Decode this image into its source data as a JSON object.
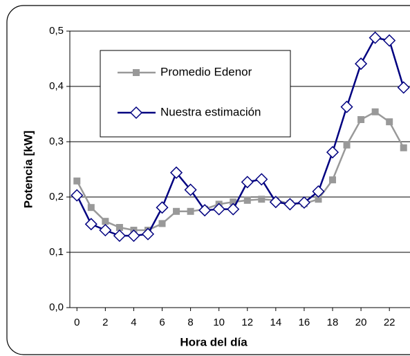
{
  "chart_data": {
    "type": "line",
    "x_label": "Hora del día",
    "y_label": "Potencia [kW]",
    "x": [
      0,
      1,
      2,
      3,
      4,
      5,
      6,
      7,
      8,
      9,
      10,
      11,
      12,
      13,
      14,
      15,
      16,
      17,
      18,
      19,
      20,
      21,
      22,
      23
    ],
    "series": [
      {
        "name": "Promedio Edenor",
        "color": "#999999",
        "marker": "square",
        "values": [
          0.229,
          0.181,
          0.156,
          0.145,
          0.14,
          0.14,
          0.152,
          0.174,
          0.174,
          0.178,
          0.187,
          0.191,
          0.194,
          0.196,
          0.194,
          0.188,
          0.188,
          0.196,
          0.231,
          0.294,
          0.34,
          0.354,
          0.336,
          0.289
        ]
      },
      {
        "name": "Nuestra estimación",
        "color": "#000080",
        "marker": "diamond",
        "values": [
          0.203,
          0.151,
          0.14,
          0.13,
          0.13,
          0.133,
          0.181,
          0.244,
          0.213,
          0.176,
          0.178,
          0.178,
          0.227,
          0.232,
          0.191,
          0.187,
          0.19,
          0.21,
          0.281,
          0.363,
          0.441,
          0.488,
          0.483,
          0.398
        ]
      }
    ],
    "xlim": [
      -0.5,
      23.5
    ],
    "ylim": [
      0,
      0.5
    ],
    "xticks": [
      0,
      2,
      4,
      6,
      8,
      10,
      12,
      14,
      16,
      18,
      20,
      22
    ],
    "yticks": [
      {
        "value": 0,
        "label": "0,0"
      },
      {
        "value": 0.1,
        "label": "0,1"
      },
      {
        "value": 0.2,
        "label": "0,2"
      },
      {
        "value": 0.3,
        "label": "0,3"
      },
      {
        "value": 0.4,
        "label": "0,4"
      },
      {
        "value": 0.5,
        "label": "0,5"
      }
    ],
    "grid": true,
    "legend": "upper left"
  }
}
